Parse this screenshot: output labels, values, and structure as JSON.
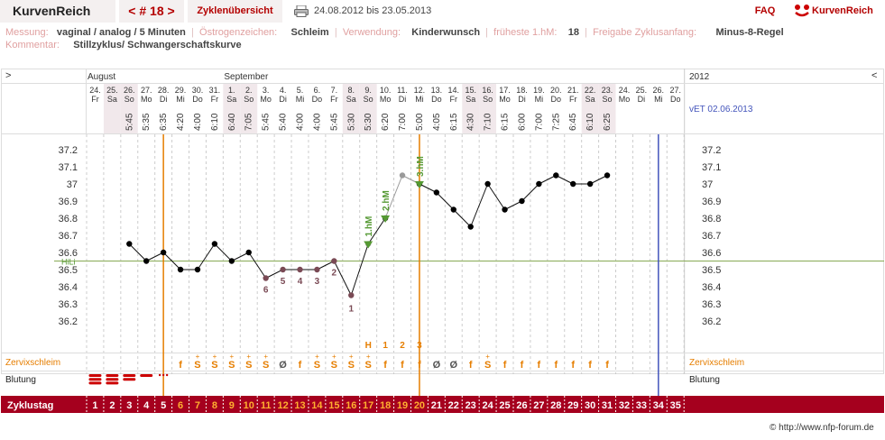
{
  "header": {
    "app_title": "KurvenReich",
    "cycle_nav": "< # 18 >",
    "overview_button": "Zyklenübersicht",
    "date_range": "24.08.2012 bis 23.05.2013",
    "faq": "FAQ",
    "logo_text": "KurvenReich"
  },
  "meta": {
    "messung_label": "Messung:",
    "messung_value": "vaginal / analog / 5 Minuten",
    "oestrogen_label": "Östrogenzeichen:",
    "oestrogen_value": "Schleim",
    "verwendung_label": "Verwendung:",
    "verwendung_value": "Kinderwunsch",
    "hm_label": "früheste 1.hM:",
    "hm_value": "18",
    "freigabe_label": "Freigabe Zyklusanfang:",
    "freigabe_value": "Minus-8-Regel",
    "kommentar_label": "Kommentar:",
    "kommentar_value": "Stillzyklus/ Schwangerschaftskurve"
  },
  "chart_data": {
    "type": "line",
    "nav_left": ">",
    "nav_right": "<",
    "year": "2012",
    "month_labels": [
      "August",
      "September"
    ],
    "vet": "vET 02.06.2013",
    "dates": [
      "24.",
      "25.",
      "26.",
      "27.",
      "28.",
      "29.",
      "30.",
      "31.",
      "1.",
      "2.",
      "3.",
      "4.",
      "5.",
      "6.",
      "7.",
      "8.",
      "9.",
      "10.",
      "11.",
      "12.",
      "13.",
      "14.",
      "15.",
      "16.",
      "17.",
      "18.",
      "19.",
      "20.",
      "21.",
      "22.",
      "23.",
      "24.",
      "25.",
      "26.",
      "27."
    ],
    "weekdays": [
      "Fr",
      "Sa",
      "So",
      "Mo",
      "Di",
      "Mi",
      "Do",
      "Fr",
      "Sa",
      "So",
      "Mo",
      "Di",
      "Mi",
      "Do",
      "Fr",
      "Sa",
      "So",
      "Mo",
      "Di",
      "Mi",
      "Do",
      "Fr",
      "Sa",
      "So",
      "Mo",
      "Di",
      "Mi",
      "Do",
      "Fr",
      "Sa",
      "So",
      "Mo",
      "Di",
      "Mi",
      "Do"
    ],
    "weekend": [
      false,
      true,
      true,
      false,
      false,
      false,
      false,
      false,
      true,
      true,
      false,
      false,
      false,
      false,
      false,
      true,
      true,
      false,
      false,
      false,
      false,
      false,
      true,
      true,
      false,
      false,
      false,
      false,
      false,
      true,
      true,
      false,
      false,
      false,
      false
    ],
    "times": [
      "",
      "",
      "5:45",
      "5:35",
      "6:35",
      "4:20",
      "4:00",
      "6:10",
      "6:40",
      "7:05",
      "5:45",
      "5:40",
      "4:00",
      "4:00",
      "5:45",
      "5:30",
      "5:30",
      "6:20",
      "7:00",
      "5:00",
      "4:05",
      "6:15",
      "4:30",
      "7:10",
      "6:15",
      "6:00",
      "7:00",
      "7:25",
      "6:45",
      "6:10",
      "6:25",
      "",
      "",
      "",
      ""
    ],
    "temperatures": [
      null,
      null,
      36.65,
      36.55,
      36.6,
      36.5,
      36.5,
      36.65,
      36.55,
      36.6,
      36.45,
      36.5,
      36.5,
      36.5,
      36.55,
      36.35,
      36.65,
      36.8,
      37.05,
      37.0,
      36.95,
      36.85,
      36.75,
      37.0,
      36.85,
      36.9,
      37.0,
      37.05,
      37.0,
      37.0,
      37.05,
      null,
      null,
      null,
      null
    ],
    "grey_points": [
      16,
      18
    ],
    "low_labels": [
      {
        "day": 10,
        "text": "6"
      },
      {
        "day": 11,
        "text": "5"
      },
      {
        "day": 12,
        "text": "4"
      },
      {
        "day": 13,
        "text": "3"
      },
      {
        "day": 14,
        "text": "2"
      },
      {
        "day": 15,
        "text": "1"
      }
    ],
    "hm_markers": [
      {
        "day": 16,
        "text": "1.hM"
      },
      {
        "day": 17,
        "text": "2.hM"
      },
      {
        "day": 19,
        "text": "3.hM"
      }
    ],
    "ylim": [
      36.1,
      37.3
    ],
    "yticks": [
      "37.2",
      "37.1",
      "37",
      "36.9",
      "36.8",
      "36.7",
      "36.6",
      "36.5",
      "36.4",
      "36.3",
      "36.2"
    ],
    "hili_label": "HiLi",
    "hili_value": 36.55,
    "orange_lines": [
      4.5,
      19.5
    ],
    "blue_line": 33.5,
    "peak_labels": [
      {
        "day": 16,
        "text": "H"
      },
      {
        "day": 17,
        "text": "1"
      },
      {
        "day": 18,
        "text": "2"
      },
      {
        "day": 19,
        "text": "3"
      }
    ],
    "zervix_label": "Zervixschleim",
    "zervix": [
      "",
      "",
      "",
      "",
      "",
      "f",
      "S",
      "S",
      "S",
      "S",
      "S",
      "Ø",
      "f",
      "S",
      "S",
      "S",
      "S",
      "f",
      "f",
      "f",
      "Ø",
      "Ø",
      "f",
      "S",
      "f",
      "f",
      "f",
      "f",
      "f",
      "f",
      "f",
      "",
      "",
      "",
      ""
    ],
    "zervix_plus": [
      false,
      false,
      false,
      false,
      false,
      false,
      true,
      true,
      true,
      true,
      true,
      false,
      false,
      true,
      true,
      true,
      true,
      false,
      false,
      false,
      false,
      false,
      false,
      true,
      false,
      false,
      false,
      false,
      false,
      false,
      false,
      false,
      false,
      false,
      false
    ],
    "blutung_label": "Blutung",
    "blutung": [
      3,
      3,
      2,
      1,
      0.5,
      0,
      0,
      0,
      0,
      0,
      0,
      0,
      0,
      0,
      0,
      0,
      0,
      0,
      0,
      0,
      0,
      0,
      0,
      0,
      0,
      0,
      0,
      0,
      0,
      0,
      0,
      0,
      0,
      0,
      0
    ],
    "zyklustag_label": "Zyklustag",
    "zyklustag": [
      "1",
      "2",
      "3",
      "4",
      "5",
      "6",
      "7",
      "8",
      "9",
      "10",
      "11",
      "12",
      "13",
      "14",
      "15",
      "16",
      "17",
      "18",
      "19",
      "20",
      "21",
      "22",
      "23",
      "24",
      "25",
      "26",
      "27",
      "28",
      "29",
      "30",
      "31",
      "32",
      "33",
      "34",
      "35"
    ],
    "colors": {
      "orange": "#e67e00",
      "blue": "#4455bb",
      "green": "#559933",
      "red_bar": "#a5001e",
      "low_label": "#7a4a55",
      "grid": "#cccccc"
    }
  },
  "footer": "© http://www.nfp-forum.de"
}
